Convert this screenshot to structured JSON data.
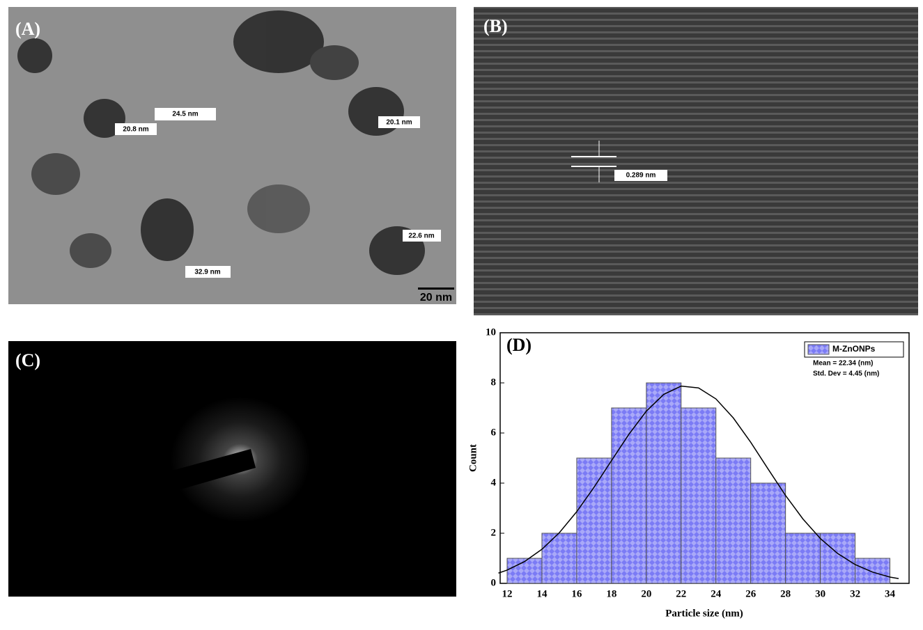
{
  "panels": {
    "A": {
      "label": "(A)",
      "annotations": [
        "24.5 nm",
        "20.8 nm",
        "20.1 nm",
        "22.6 nm",
        "32.9 nm"
      ],
      "scale_bar": "20 nm"
    },
    "B": {
      "label": "(B)",
      "annotations": [
        "0.289 nm"
      ]
    },
    "C": {
      "label": "(C)"
    }
  },
  "chart_data": {
    "type": "histogram",
    "label": "(D)",
    "x_label": "Particle size (nm)",
    "y_label": "Count",
    "bins": [
      12,
      14,
      16,
      18,
      20,
      22,
      24,
      26,
      28,
      30,
      32,
      34
    ],
    "series": [
      {
        "name": "M-ZnONPs",
        "color": "#7b7bf5",
        "values": [
          1,
          2,
          5,
          7,
          8,
          7,
          5,
          4,
          2,
          2,
          1
        ]
      }
    ],
    "fit": {
      "color": "#000000",
      "x": [
        11.5,
        12,
        13,
        14,
        15,
        16,
        17,
        18,
        19,
        20,
        21,
        22,
        23,
        24,
        25,
        26,
        27,
        28,
        29,
        30,
        31,
        32,
        33,
        34,
        34.5
      ],
      "values": [
        0.41,
        0.53,
        0.87,
        1.36,
        2.02,
        2.86,
        3.84,
        4.9,
        5.95,
        6.87,
        7.54,
        7.87,
        7.8,
        7.36,
        6.6,
        5.63,
        4.56,
        3.51,
        2.57,
        1.79,
        1.19,
        0.75,
        0.45,
        0.25,
        0.19
      ]
    },
    "annotations": [
      "Mean = 22.34 (nm)",
      "Std. Dev = 4.45 (nm)"
    ],
    "xlim": [
      11.6,
      35.1
    ],
    "ylim": [
      0,
      10
    ],
    "xticks": [
      12,
      14,
      16,
      18,
      20,
      22,
      24,
      26,
      28,
      30,
      32,
      34
    ],
    "yticks": [
      0,
      2,
      4,
      6,
      8,
      10
    ],
    "legend": "top-right"
  }
}
